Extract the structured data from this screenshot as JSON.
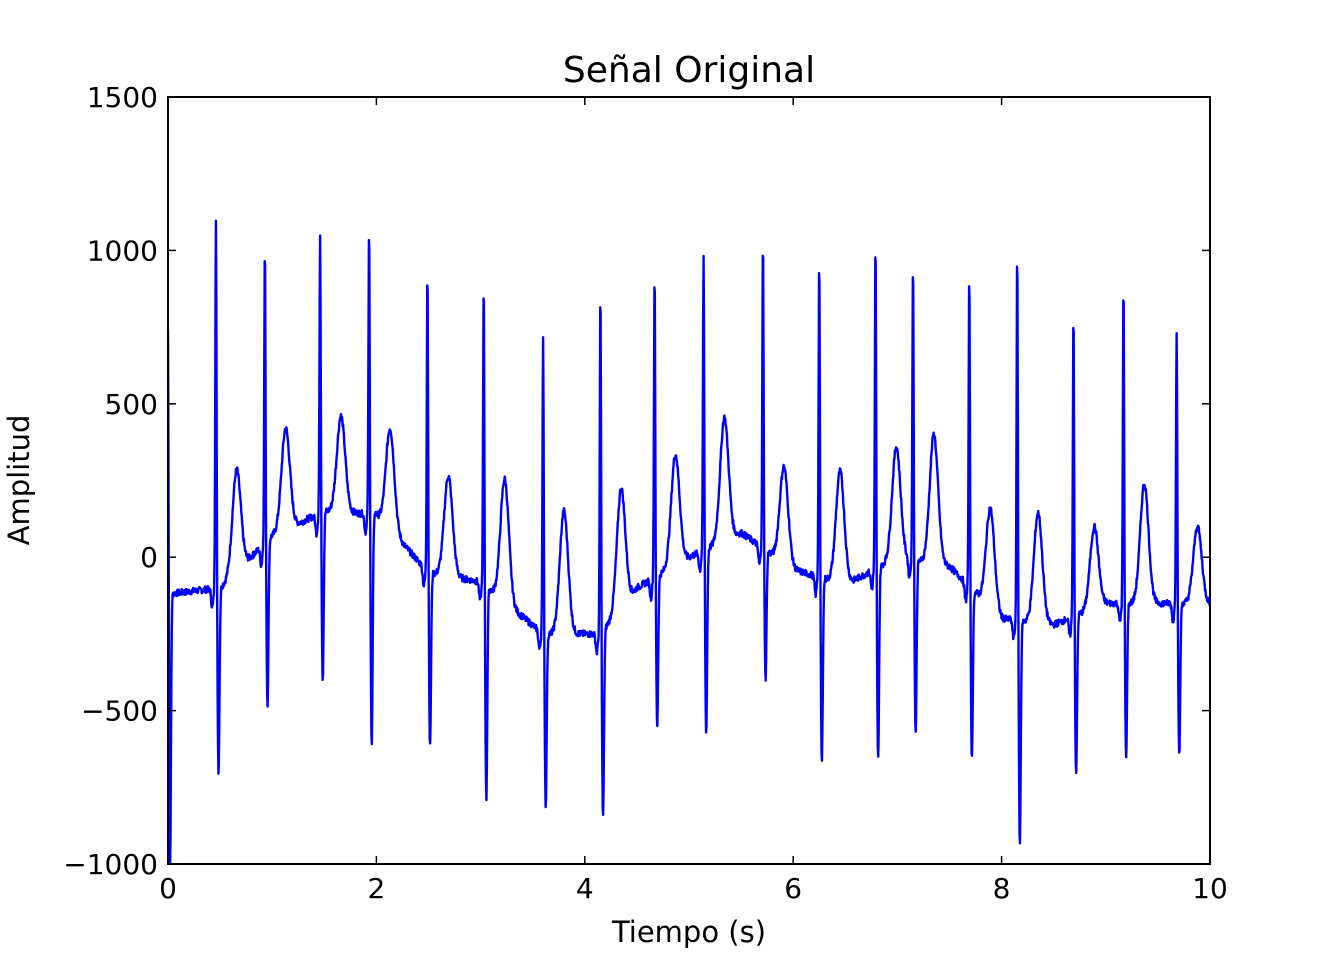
{
  "chart_data": {
    "type": "line",
    "title": "Señal Original",
    "xlabel": "Tiempo (s)",
    "ylabel": "Amplitud",
    "xlim": [
      0,
      10
    ],
    "ylim": [
      -1000,
      1500
    ],
    "xticks": [
      0,
      2,
      4,
      6,
      8,
      10
    ],
    "xtick_labels": [
      "0",
      "2",
      "4",
      "6",
      "8",
      "10"
    ],
    "yticks": [
      -1000,
      -500,
      0,
      500,
      1000,
      1500
    ],
    "ytick_labels": [
      "−1000",
      "−500",
      "0",
      "500",
      "1000",
      "1500"
    ],
    "grid": false,
    "color": "#0000ff",
    "beats": [
      {
        "t": 0.46,
        "r": 1120,
        "s": -700,
        "tw": 285
      },
      {
        "t": 0.93,
        "r": 1025,
        "s": -480,
        "tw": 420
      },
      {
        "t": 1.46,
        "r": 1050,
        "s": -400,
        "tw": 460
      },
      {
        "t": 1.93,
        "r": 1085,
        "s": -620,
        "tw": 420
      },
      {
        "t": 2.49,
        "r": 955,
        "s": -620,
        "tw": 265
      },
      {
        "t": 3.03,
        "r": 900,
        "s": -790,
        "tw": 255
      },
      {
        "t": 3.6,
        "r": 720,
        "s": -810,
        "tw": 150
      },
      {
        "t": 4.15,
        "r": 880,
        "s": -850,
        "tw": 225
      },
      {
        "t": 4.67,
        "r": 945,
        "s": -550,
        "tw": 335
      },
      {
        "t": 5.14,
        "r": 985,
        "s": -575,
        "tw": 455
      },
      {
        "t": 5.71,
        "r": 1045,
        "s": -395,
        "tw": 295
      },
      {
        "t": 6.25,
        "r": 985,
        "s": -670,
        "tw": 280
      },
      {
        "t": 6.79,
        "r": 1035,
        "s": -660,
        "tw": 360
      },
      {
        "t": 7.15,
        "r": 980,
        "s": -580,
        "tw": 400
      },
      {
        "t": 7.69,
        "r": 935,
        "s": -660,
        "tw": 160
      },
      {
        "t": 8.15,
        "r": 1010,
        "s": -930,
        "tw": 145
      },
      {
        "t": 8.69,
        "r": 810,
        "s": -710,
        "tw": 100
      },
      {
        "t": 9.17,
        "r": 895,
        "s": -650,
        "tw": 240
      },
      {
        "t": 9.68,
        "r": 750,
        "s": -650,
        "tw": 100
      }
    ],
    "baseline": [
      [
        0.0,
        -120
      ],
      [
        0.5,
        -100
      ],
      [
        1.0,
        70
      ],
      [
        1.5,
        150
      ],
      [
        2.0,
        140
      ],
      [
        2.5,
        -50
      ],
      [
        3.0,
        -80
      ],
      [
        3.6,
        -250
      ],
      [
        4.15,
        -250
      ],
      [
        4.5,
        -100
      ],
      [
        5.0,
        0
      ],
      [
        5.5,
        80
      ],
      [
        6.0,
        -40
      ],
      [
        6.5,
        -90
      ],
      [
        7.0,
        0
      ],
      [
        7.5,
        -30
      ],
      [
        8.0,
        -200
      ],
      [
        8.5,
        -220
      ],
      [
        9.0,
        -150
      ],
      [
        9.5,
        -150
      ],
      [
        10.0,
        -150
      ]
    ]
  }
}
